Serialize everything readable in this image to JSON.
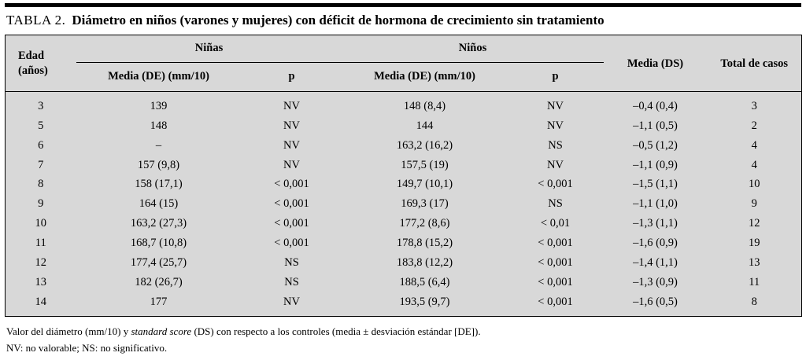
{
  "title": {
    "label": "TABLA 2.",
    "text": "Diámetro en niños (varones y mujeres) con déficit de hormona de crecimiento sin tratamiento"
  },
  "colors": {
    "table_background": "#d8d8d8",
    "rule_black": "#000000"
  },
  "table": {
    "headers": {
      "edad": "Edad\n(años)",
      "ninas": "Niñas",
      "ninos": "Niños",
      "media_de_mm": "Media (DE) (mm/10)",
      "p": "p",
      "media_ds": "Media (DS)",
      "total": "Total de casos"
    },
    "rows": [
      [
        "3",
        "139",
        "NV",
        "148 (8,4)",
        "NV",
        "–0,4 (0,4)",
        "3"
      ],
      [
        "5",
        "148",
        "NV",
        "144",
        "NV",
        "–1,1 (0,5)",
        "2"
      ],
      [
        "6",
        "–",
        "NV",
        "163,2 (16,2)",
        "NS",
        "–0,5 (1,2)",
        "4"
      ],
      [
        "7",
        "157 (9,8)",
        "NV",
        "157,5 (19)",
        "NV",
        "–1,1 (0,9)",
        "4"
      ],
      [
        "8",
        "158 (17,1)",
        "< 0,001",
        "149,7 (10,1)",
        "< 0,001",
        "–1,5 (1,1)",
        "10"
      ],
      [
        "9",
        "164 (15)",
        "< 0,001",
        "169,3 (17)",
        "NS",
        "–1,1 (1,0)",
        "9"
      ],
      [
        "10",
        "163,2 (27,3)",
        "< 0,001",
        "177,2 (8,6)",
        "< 0,01",
        "–1,3 (1,1)",
        "12"
      ],
      [
        "11",
        "168,7 (10,8)",
        "< 0,001",
        "178,8 (15,2)",
        "< 0,001",
        "–1,6 (0,9)",
        "19"
      ],
      [
        "12",
        "177,4 (25,7)",
        "NS",
        "183,8 (12,2)",
        "< 0,001",
        "–1,4 (1,1)",
        "13"
      ],
      [
        "13",
        "182 (26,7)",
        "NS",
        "188,5 (6,4)",
        "< 0,001",
        "–1,3 (0,9)",
        "11"
      ],
      [
        "14",
        "177",
        "NV",
        "193,5 (9,7)",
        "< 0,001",
        "–1,6 (0,5)",
        "8"
      ]
    ]
  },
  "footnotes": {
    "line1_pre": "Valor del diámetro (mm/10) y ",
    "line1_italic": "standard score",
    "line1_post": " (DS) con respecto a los controles (media ± desviación estándar [DE]).",
    "line2": "NV: no valorable; NS: no significativo."
  }
}
